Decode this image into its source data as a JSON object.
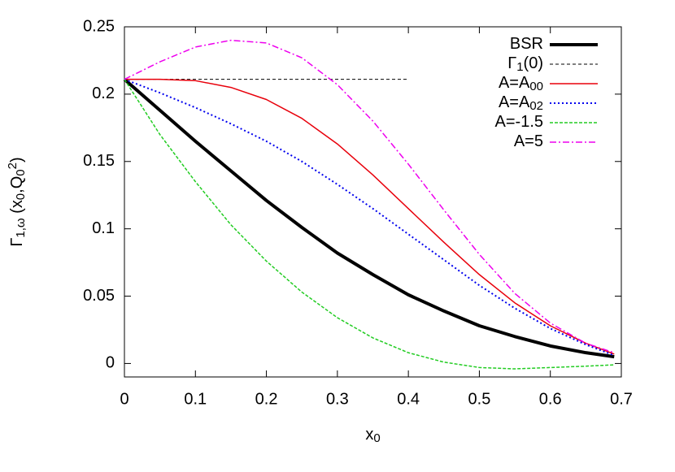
{
  "chart_data": {
    "type": "line",
    "xlabel": [
      {
        "text": "x"
      },
      {
        "text": "0",
        "sub": true
      }
    ],
    "ylabel": [
      {
        "text": "Γ"
      },
      {
        "text": "1,ω",
        "sub": true
      },
      {
        "text": " (x"
      },
      {
        "text": "0",
        "sub": true
      },
      {
        "text": ",Q"
      },
      {
        "text": "0",
        "sub": true
      },
      {
        "text": "2",
        "sup": true
      },
      {
        "text": ")"
      }
    ],
    "xlim": [
      0,
      0.7
    ],
    "ylim": [
      -0.01,
      0.25
    ],
    "xticks": [
      0,
      0.1,
      0.2,
      0.3,
      0.4,
      0.5,
      0.6,
      0.7
    ],
    "yticks": [
      0,
      0.05,
      0.1,
      0.15,
      0.2,
      0.25
    ],
    "legend": "top-right",
    "series": [
      {
        "name": [
          {
            "text": "BSR"
          }
        ],
        "color": "#000000",
        "width": 4,
        "dash": "none",
        "x": [
          0,
          0.05,
          0.1,
          0.15,
          0.2,
          0.25,
          0.3,
          0.35,
          0.4,
          0.45,
          0.5,
          0.55,
          0.6,
          0.65,
          0.69
        ],
        "values": [
          0.211,
          0.188,
          0.165,
          0.143,
          0.121,
          0.101,
          0.082,
          0.066,
          0.051,
          0.039,
          0.028,
          0.02,
          0.013,
          0.008,
          0.005
        ]
      },
      {
        "name": [
          {
            "text": "Γ"
          },
          {
            "text": "1",
            "sub": true
          },
          {
            "text": "(0)"
          }
        ],
        "color": "#000000",
        "width": 1,
        "dash": "4,3",
        "x": [
          0,
          0.4
        ],
        "values": [
          0.211,
          0.211
        ]
      },
      {
        "name": [
          {
            "text": "A=A"
          },
          {
            "text": "00",
            "sub": true
          }
        ],
        "color": "#e8000b",
        "width": 1.5,
        "dash": "none",
        "x": [
          0,
          0.05,
          0.1,
          0.15,
          0.2,
          0.25,
          0.3,
          0.35,
          0.4,
          0.45,
          0.5,
          0.55,
          0.6,
          0.65,
          0.69
        ],
        "values": [
          0.211,
          0.211,
          0.21,
          0.205,
          0.196,
          0.182,
          0.163,
          0.14,
          0.115,
          0.09,
          0.066,
          0.045,
          0.028,
          0.015,
          0.007
        ]
      },
      {
        "name": [
          {
            "text": "A=A"
          },
          {
            "text": "02",
            "sub": true
          }
        ],
        "color": "#0000ee",
        "width": 2,
        "dash": "2,3",
        "x": [
          0,
          0.05,
          0.1,
          0.15,
          0.2,
          0.25,
          0.3,
          0.35,
          0.4,
          0.45,
          0.5,
          0.55,
          0.6,
          0.65,
          0.69
        ],
        "values": [
          0.211,
          0.201,
          0.19,
          0.178,
          0.165,
          0.15,
          0.133,
          0.115,
          0.096,
          0.077,
          0.058,
          0.041,
          0.026,
          0.014,
          0.006
        ]
      },
      {
        "name": [
          {
            "text": "A=-1.5"
          }
        ],
        "color": "#22cc22",
        "width": 1.5,
        "dash": "4,2",
        "x": [
          0,
          0.05,
          0.1,
          0.15,
          0.2,
          0.25,
          0.3,
          0.35,
          0.4,
          0.45,
          0.5,
          0.55,
          0.6,
          0.65,
          0.69
        ],
        "values": [
          0.211,
          0.17,
          0.135,
          0.103,
          0.076,
          0.053,
          0.034,
          0.019,
          0.008,
          0.001,
          -0.003,
          -0.004,
          -0.003,
          -0.002,
          -0.001
        ]
      },
      {
        "name": [
          {
            "text": "A=5"
          }
        ],
        "color": "#ee00ee",
        "width": 1.5,
        "dash": "8,3,2,3",
        "x": [
          0,
          0.05,
          0.1,
          0.15,
          0.2,
          0.25,
          0.3,
          0.35,
          0.4,
          0.45,
          0.5,
          0.55,
          0.6,
          0.65,
          0.69
        ],
        "values": [
          0.211,
          0.224,
          0.235,
          0.24,
          0.238,
          0.227,
          0.207,
          0.18,
          0.148,
          0.114,
          0.081,
          0.052,
          0.03,
          0.015,
          0.008
        ]
      }
    ]
  }
}
